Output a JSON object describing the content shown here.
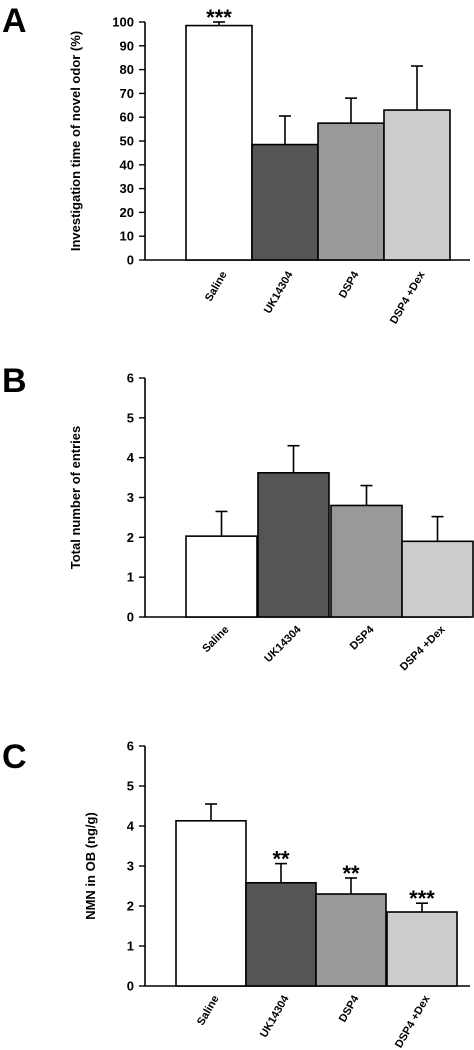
{
  "chart_data": [
    {
      "type": "bar",
      "panel": "A",
      "ylabel": "Investigation time of novel odor (%)",
      "ylim": [
        0,
        100
      ],
      "yticks": [
        0,
        10,
        20,
        30,
        40,
        50,
        60,
        70,
        80,
        90,
        100
      ],
      "categories": [
        "Saline",
        "UK14304",
        "DSP4",
        "DSP4 +Dex"
      ],
      "values": [
        98.5,
        48.5,
        57.5,
        63
      ],
      "errors": [
        1.5,
        12,
        10.5,
        18.5
      ],
      "significance": [
        "***",
        "",
        "",
        ""
      ],
      "colors": [
        "#ffffff",
        "#555555",
        "#999999",
        "#cccccc"
      ]
    },
    {
      "type": "bar",
      "panel": "B",
      "ylabel": "Total number of entries",
      "ylim": [
        0,
        6
      ],
      "yticks": [
        0,
        1,
        2,
        3,
        4,
        5,
        6
      ],
      "categories": [
        "Saline",
        "UK14304",
        "DSP4",
        "DSP4 +Dex"
      ],
      "values": [
        2.03,
        3.62,
        2.8,
        1.9
      ],
      "errors": [
        0.62,
        0.68,
        0.5,
        0.62
      ],
      "significance": [
        "",
        "",
        "",
        ""
      ],
      "colors": [
        "#ffffff",
        "#555555",
        "#999999",
        "#cccccc"
      ]
    },
    {
      "type": "bar",
      "panel": "C",
      "ylabel": "NMN in OB (ng/g)",
      "ylim": [
        0,
        6
      ],
      "yticks": [
        0,
        1,
        2,
        3,
        4,
        5,
        6
      ],
      "categories": [
        "Saline",
        "UK14304",
        "DSP4",
        "DSP4 +Dex"
      ],
      "values": [
        4.13,
        2.58,
        2.3,
        1.85
      ],
      "errors": [
        0.42,
        0.48,
        0.4,
        0.22
      ],
      "significance": [
        "",
        "**",
        "**",
        "***"
      ],
      "colors": [
        "#ffffff",
        "#555555",
        "#999999",
        "#cccccc"
      ]
    }
  ]
}
